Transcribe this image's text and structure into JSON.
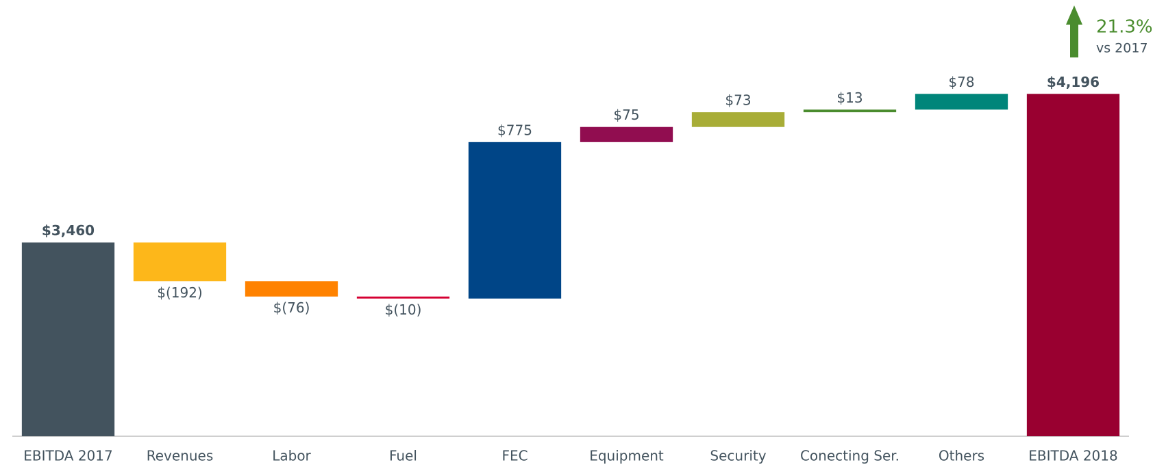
{
  "chart_data": {
    "type": "waterfall",
    "categories": [
      "EBITDA 2017",
      "Revenues",
      "Labor",
      "Fuel",
      "FEC",
      "Equipment",
      "Security",
      "Conecting Ser.",
      "Others",
      "EBITDA 2018"
    ],
    "values": [
      3460,
      -192,
      -76,
      -10,
      775,
      75,
      73,
      13,
      78,
      4196
    ],
    "value_labels": [
      "$3,460",
      "$(192)",
      "$(76)",
      "$(10)",
      "$775",
      "$75",
      "$73",
      "$13",
      "$78",
      "$4,196"
    ],
    "colors": [
      "#43535e",
      "#fdb71a",
      "#ff8200",
      "#d50032",
      "#004587",
      "#910d50",
      "#a8ad37",
      "#4a8c2e",
      "#00857a",
      "#990030"
    ],
    "ylim": [
      2500,
      4600
    ],
    "annotation": {
      "value": "21.3%",
      "text": "vs 2017",
      "color": "#4a8c2e"
    }
  }
}
